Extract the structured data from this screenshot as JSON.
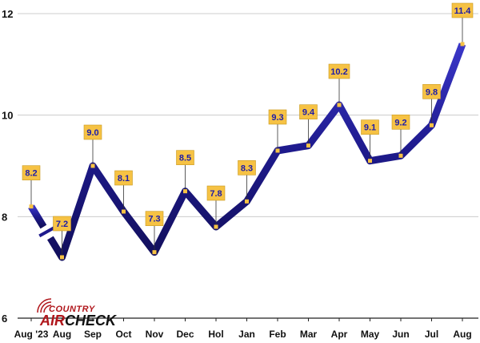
{
  "logo": {
    "top": "COUNTRY",
    "left": "AIR",
    "right": "CHECK",
    "color_primary": "#b0161b",
    "color_secondary": "#111111"
  },
  "chart_data": {
    "type": "line",
    "title": "",
    "xlabel": "",
    "ylabel": "",
    "categories": [
      "Aug '23",
      "Aug",
      "Sep",
      "Oct",
      "Nov",
      "Dec",
      "Hol",
      "Jan",
      "Feb",
      "Mar",
      "Apr",
      "May",
      "Jun",
      "Jul",
      "Aug"
    ],
    "series": [
      {
        "values": [
          8.2,
          7.2,
          9.0,
          8.1,
          7.3,
          8.5,
          7.8,
          8.3,
          9.3,
          9.4,
          10.2,
          9.1,
          9.2,
          9.8,
          11.4
        ]
      }
    ],
    "value_labels": [
      "8.2",
      "7.2",
      "9.0",
      "8.1",
      "7.3",
      "8.5",
      "7.8",
      "8.3",
      "9.3",
      "9.4",
      "10.2",
      "9.1",
      "9.2",
      "9.8",
      "11.4"
    ],
    "break_after_index": 0,
    "ylim": [
      6,
      12
    ],
    "yticks": [
      6,
      8,
      10,
      12
    ],
    "grid": true,
    "legend": "none",
    "colors": {
      "line": "#1e1a8c",
      "label_bg": "#f6c244",
      "label_text": "#1c1ca8",
      "marker": "#f6c244",
      "grid": "#cccccc"
    }
  }
}
